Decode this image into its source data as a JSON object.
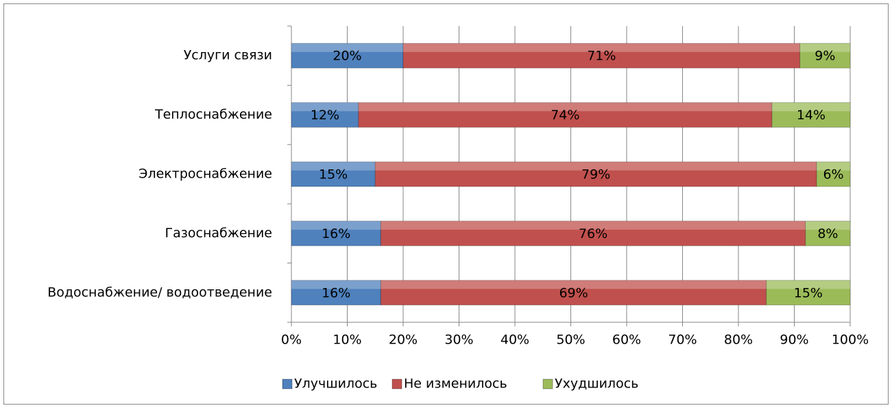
{
  "chart_data": {
    "type": "stacked_barh",
    "categories": [
      "Услуги связи",
      "Теплоснабжение",
      "Электроснабжение",
      "Газоснабжение",
      "Водоснабжение/ водоотведение"
    ],
    "series": [
      {
        "name": "Улучшилось",
        "color": "#4f81bd",
        "values": [
          20,
          12,
          15,
          16,
          16
        ],
        "value_labels": [
          "20%",
          "12%",
          "15%",
          "16%",
          "16%"
        ]
      },
      {
        "name": "Не изменилось",
        "color": "#c0504d",
        "values": [
          71,
          74,
          79,
          76,
          69
        ],
        "value_labels": [
          "71%",
          "74%",
          "79%",
          "76%",
          "69%"
        ]
      },
      {
        "name": "Ухудшилось",
        "color": "#9bbb59",
        "values": [
          9,
          14,
          6,
          8,
          15
        ],
        "value_labels": [
          "9%",
          "14%",
          "6%",
          "8%",
          "15%"
        ]
      }
    ],
    "xlim": [
      0,
      100
    ],
    "xticks": [
      {
        "value": 0,
        "label": "0%"
      },
      {
        "value": 10,
        "label": "10%"
      },
      {
        "value": 20,
        "label": "20%"
      },
      {
        "value": 30,
        "label": "30%"
      },
      {
        "value": 40,
        "label": "40%"
      },
      {
        "value": 50,
        "label": "50%"
      },
      {
        "value": 60,
        "label": "60%"
      },
      {
        "value": 70,
        "label": "70%"
      },
      {
        "value": 80,
        "label": "80%"
      },
      {
        "value": 90,
        "label": "90%"
      },
      {
        "value": 100,
        "label": "100%"
      }
    ],
    "grid": true,
    "legend": "bottom"
  }
}
